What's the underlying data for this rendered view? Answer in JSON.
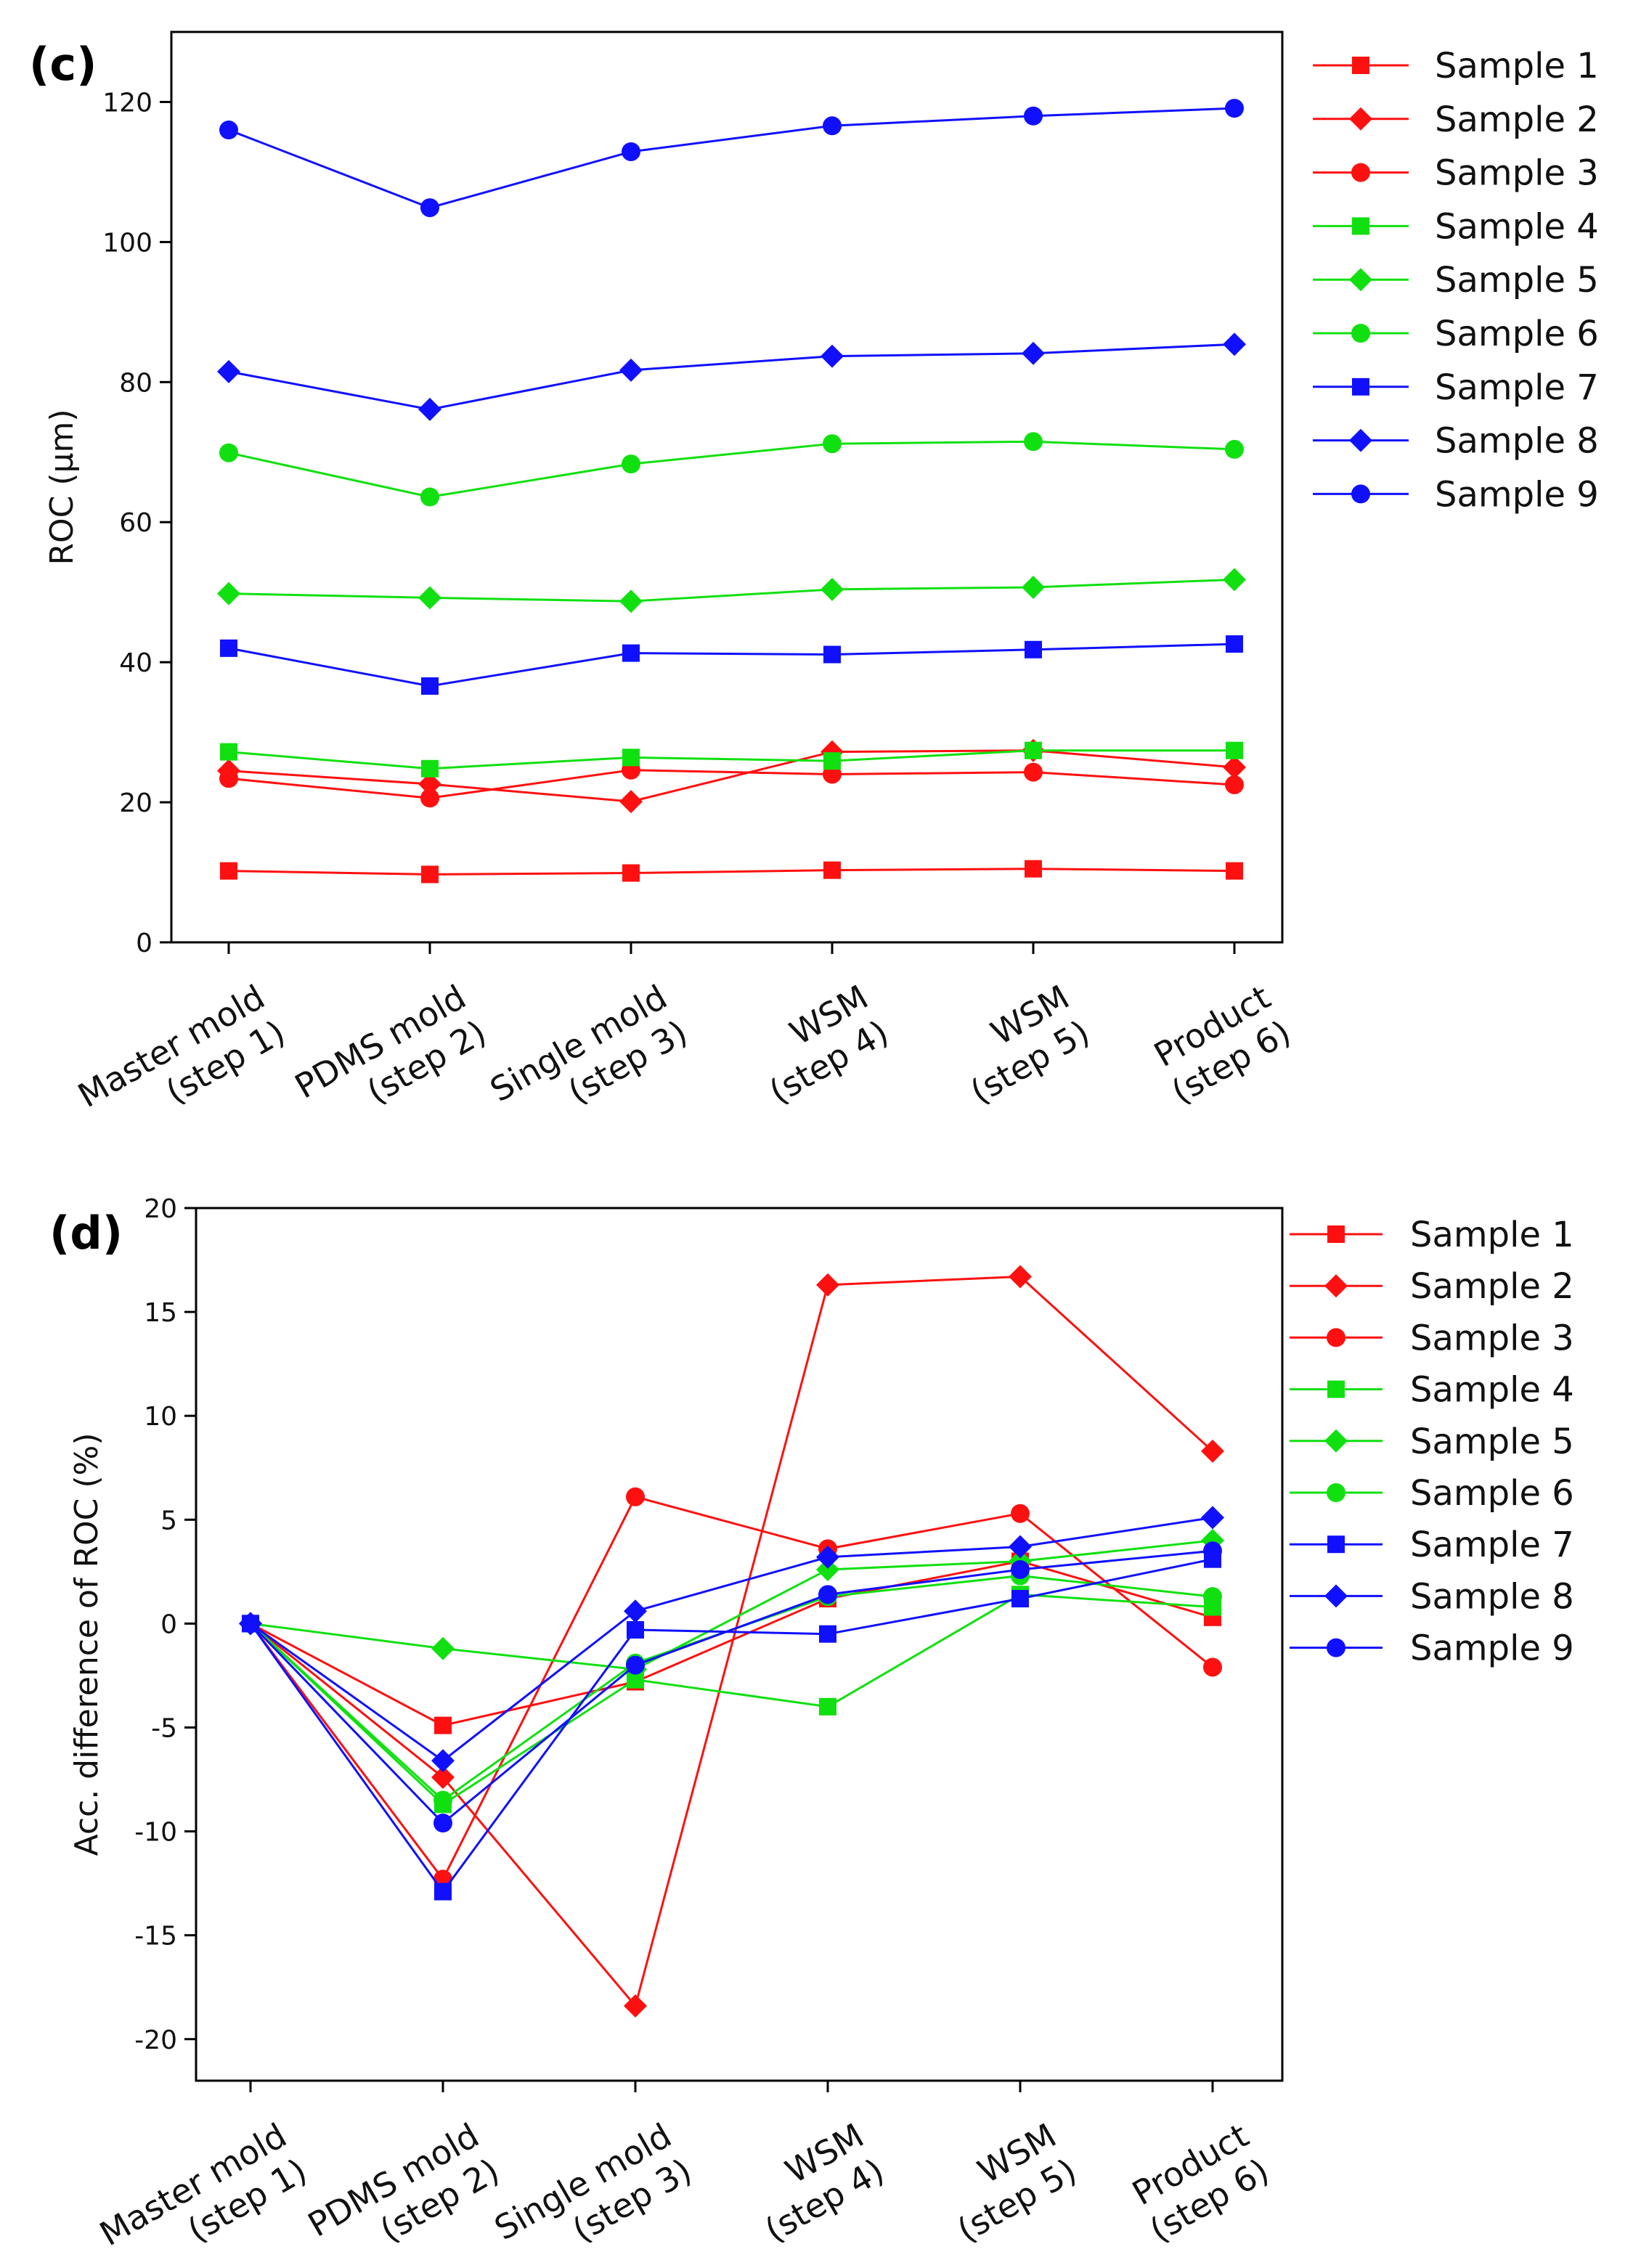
{
  "colors": {
    "red": "#ff1010",
    "green": "#10e010",
    "blue": "#1010ff"
  },
  "chart_data": [
    {
      "panel": "(c)",
      "type": "line",
      "title": "",
      "xlabel": "",
      "ylabel": "ROC (μm)",
      "ylim": [
        0,
        130
      ],
      "yticks": [
        0,
        20,
        40,
        60,
        80,
        100,
        120
      ],
      "categories": [
        [
          "Master mold",
          "(step 1)"
        ],
        [
          "PDMS mold",
          "(step 2)"
        ],
        [
          "Single mold",
          "(step 3)"
        ],
        [
          "WSM",
          "(step 4)"
        ],
        [
          "WSM",
          "(step 5)"
        ],
        [
          "Product",
          "(step 6)"
        ]
      ],
      "legend_position": "right",
      "series": [
        {
          "name": "Sample 1",
          "color": "red",
          "marker": "square",
          "values": [
            10.2,
            9.7,
            9.9,
            10.3,
            10.5,
            10.2
          ]
        },
        {
          "name": "Sample 2",
          "color": "red",
          "marker": "diamond",
          "values": [
            24.5,
            22.6,
            20.1,
            27.2,
            27.4,
            25.0
          ]
        },
        {
          "name": "Sample 3",
          "color": "red",
          "marker": "circle",
          "values": [
            23.4,
            20.6,
            24.6,
            24.0,
            24.3,
            22.5
          ]
        },
        {
          "name": "Sample 4",
          "color": "green",
          "marker": "square",
          "values": [
            27.2,
            24.8,
            26.4,
            25.9,
            27.4,
            27.4
          ]
        },
        {
          "name": "Sample 5",
          "color": "green",
          "marker": "diamond",
          "values": [
            49.8,
            49.2,
            48.7,
            50.4,
            50.7,
            51.8
          ]
        },
        {
          "name": "Sample 6",
          "color": "green",
          "marker": "circle",
          "values": [
            69.9,
            63.6,
            68.3,
            71.2,
            71.5,
            70.4
          ]
        },
        {
          "name": "Sample 7",
          "color": "blue",
          "marker": "square",
          "values": [
            42.0,
            36.6,
            41.3,
            41.1,
            41.8,
            42.6
          ]
        },
        {
          "name": "Sample 8",
          "color": "blue",
          "marker": "diamond",
          "values": [
            81.5,
            76.1,
            81.7,
            83.7,
            84.1,
            85.4
          ]
        },
        {
          "name": "Sample 9",
          "color": "blue",
          "marker": "circle",
          "values": [
            116.0,
            104.9,
            112.9,
            116.6,
            118.0,
            119.1
          ]
        }
      ]
    },
    {
      "panel": "(d)",
      "type": "line",
      "title": "",
      "xlabel": "",
      "ylabel": "Acc. difference of ROC (%)",
      "ylim": [
        -22,
        20
      ],
      "yticks": [
        -20,
        -15,
        -10,
        -5,
        0,
        5,
        10,
        15,
        20
      ],
      "categories": [
        [
          "Master mold",
          "(step 1)"
        ],
        [
          "PDMS mold",
          "(step 2)"
        ],
        [
          "Single mold",
          "(step 3)"
        ],
        [
          "WSM",
          "(step 4)"
        ],
        [
          "WSM",
          "(step 5)"
        ],
        [
          "Product",
          "(step 6)"
        ]
      ],
      "legend_position": "right",
      "series": [
        {
          "name": "Sample 1",
          "color": "red",
          "marker": "square",
          "values": [
            0,
            -4.9,
            -2.8,
            1.2,
            3.0,
            0.3
          ]
        },
        {
          "name": "Sample 2",
          "color": "red",
          "marker": "diamond",
          "values": [
            0,
            -7.4,
            -18.4,
            16.3,
            16.7,
            8.3
          ]
        },
        {
          "name": "Sample 3",
          "color": "red",
          "marker": "circle",
          "values": [
            0,
            -12.3,
            6.1,
            3.6,
            5.3,
            -2.1
          ]
        },
        {
          "name": "Sample 4",
          "color": "green",
          "marker": "square",
          "values": [
            0,
            -8.7,
            -2.7,
            -4.0,
            1.4,
            0.8
          ]
        },
        {
          "name": "Sample 5",
          "color": "green",
          "marker": "diamond",
          "values": [
            0,
            -1.2,
            -2.2,
            2.6,
            3.0,
            4.0
          ]
        },
        {
          "name": "Sample 6",
          "color": "green",
          "marker": "circle",
          "values": [
            0,
            -8.5,
            -1.9,
            1.3,
            2.3,
            1.3
          ]
        },
        {
          "name": "Sample 7",
          "color": "blue",
          "marker": "square",
          "values": [
            0,
            -12.9,
            -0.3,
            -0.5,
            1.2,
            3.1
          ]
        },
        {
          "name": "Sample 8",
          "color": "blue",
          "marker": "diamond",
          "values": [
            0,
            -6.6,
            0.6,
            3.2,
            3.7,
            5.1
          ]
        },
        {
          "name": "Sample 9",
          "color": "blue",
          "marker": "circle",
          "values": [
            0,
            -9.6,
            -2.0,
            1.4,
            2.6,
            3.5
          ]
        }
      ]
    }
  ]
}
